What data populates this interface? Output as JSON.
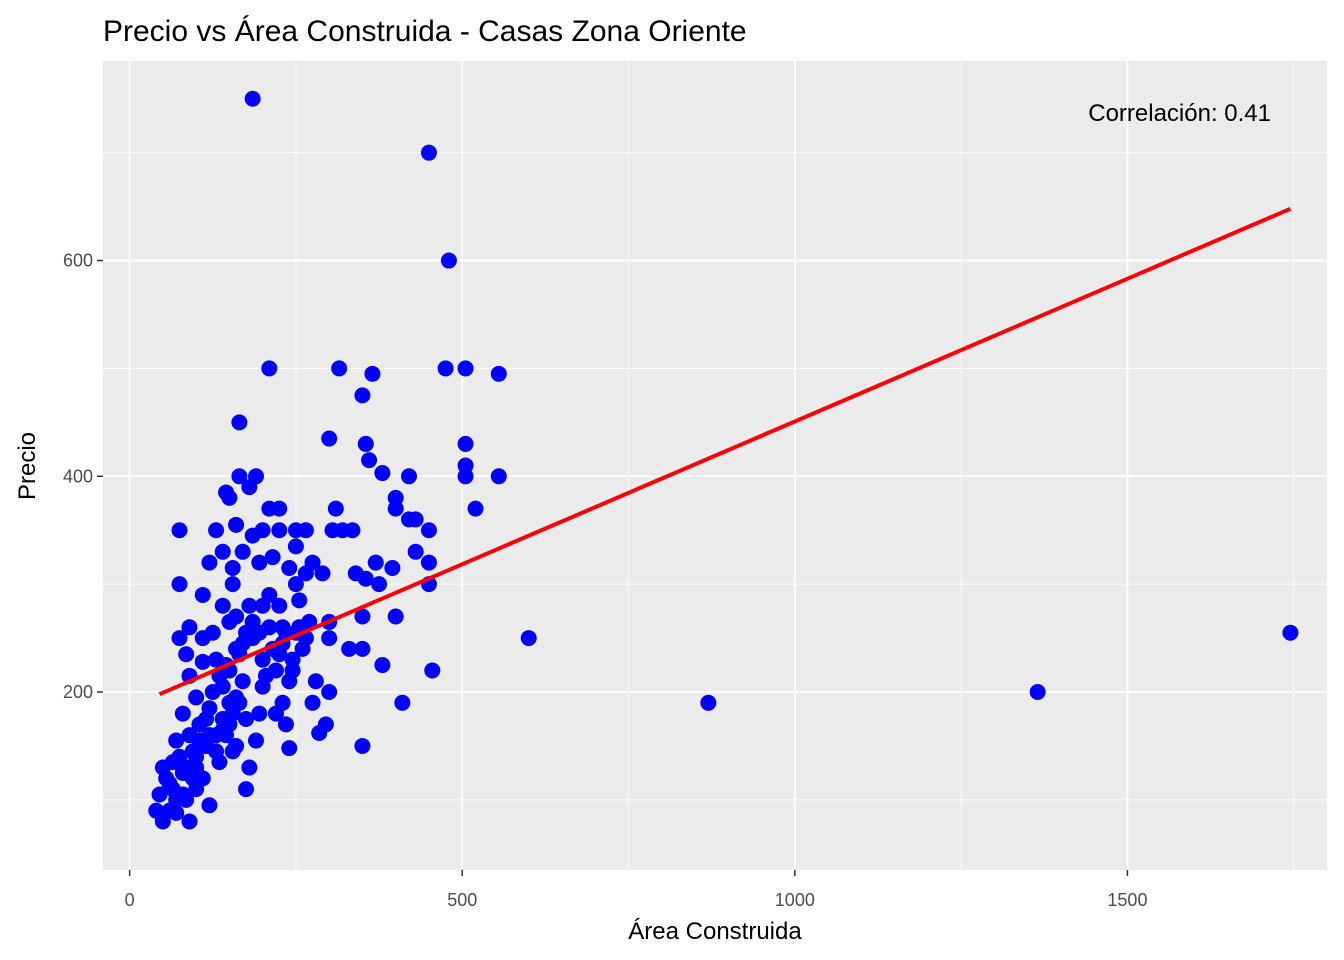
{
  "chart_data": {
    "type": "scatter",
    "title": "Precio vs Área Construida - Casas Zona Oriente",
    "xlabel": "Área Construida",
    "ylabel": "Precio",
    "xlim": [
      -40,
      1800
    ],
    "ylim": [
      35,
      785
    ],
    "x_ticks": [
      0,
      500,
      1000,
      1500
    ],
    "x_tick_labels": [
      "0",
      "500",
      "1000",
      "1500"
    ],
    "x_minor_ticks": [
      250,
      750,
      1250,
      1750
    ],
    "y_ticks": [
      200,
      400,
      600
    ],
    "y_tick_labels": [
      "200",
      "400",
      "600"
    ],
    "y_minor_ticks": [
      100,
      300,
      500,
      700
    ],
    "grid": true,
    "panel_background": "#ebebeb",
    "grid_color": "#ffffff",
    "point_color": "#0000ff",
    "line_color": "#ff0000",
    "annotation": "Correlación: 0.41",
    "regression": {
      "x": [
        45,
        1745
      ],
      "y": [
        198,
        648
      ]
    },
    "points": [
      [
        185,
        750
      ],
      [
        450,
        700
      ],
      [
        480,
        600
      ],
      [
        210,
        500
      ],
      [
        315,
        500
      ],
      [
        475,
        500
      ],
      [
        505,
        500
      ],
      [
        365,
        495
      ],
      [
        555,
        495
      ],
      [
        350,
        475
      ],
      [
        165,
        450
      ],
      [
        300,
        435
      ],
      [
        355,
        430
      ],
      [
        505,
        430
      ],
      [
        360,
        415
      ],
      [
        505,
        410
      ],
      [
        380,
        403
      ],
      [
        165,
        400
      ],
      [
        190,
        400
      ],
      [
        420,
        400
      ],
      [
        505,
        400
      ],
      [
        555,
        400
      ],
      [
        180,
        390
      ],
      [
        145,
        385
      ],
      [
        150,
        380
      ],
      [
        400,
        380
      ],
      [
        210,
        370
      ],
      [
        225,
        370
      ],
      [
        310,
        370
      ],
      [
        400,
        370
      ],
      [
        520,
        370
      ],
      [
        420,
        360
      ],
      [
        430,
        360
      ],
      [
        75,
        350
      ],
      [
        130,
        350
      ],
      [
        200,
        350
      ],
      [
        225,
        350
      ],
      [
        250,
        350
      ],
      [
        265,
        350
      ],
      [
        305,
        350
      ],
      [
        320,
        350
      ],
      [
        335,
        350
      ],
      [
        450,
        350
      ],
      [
        160,
        355
      ],
      [
        185,
        345
      ],
      [
        250,
        335
      ],
      [
        430,
        330
      ],
      [
        140,
        330
      ],
      [
        170,
        330
      ],
      [
        215,
        325
      ],
      [
        195,
        320
      ],
      [
        275,
        320
      ],
      [
        370,
        320
      ],
      [
        450,
        320
      ],
      [
        120,
        320
      ],
      [
        155,
        315
      ],
      [
        240,
        315
      ],
      [
        395,
        315
      ],
      [
        265,
        310
      ],
      [
        290,
        310
      ],
      [
        340,
        310
      ],
      [
        355,
        305
      ],
      [
        375,
        300
      ],
      [
        75,
        300
      ],
      [
        155,
        300
      ],
      [
        250,
        300
      ],
      [
        450,
        300
      ],
      [
        110,
        290
      ],
      [
        210,
        290
      ],
      [
        255,
        285
      ],
      [
        140,
        280
      ],
      [
        180,
        280
      ],
      [
        200,
        280
      ],
      [
        225,
        280
      ],
      [
        160,
        270
      ],
      [
        350,
        270
      ],
      [
        400,
        270
      ],
      [
        150,
        265
      ],
      [
        185,
        265
      ],
      [
        270,
        265
      ],
      [
        300,
        265
      ],
      [
        210,
        260
      ],
      [
        230,
        260
      ],
      [
        90,
        260
      ],
      [
        125,
        255
      ],
      [
        175,
        255
      ],
      [
        250,
        255
      ],
      [
        265,
        250
      ],
      [
        75,
        250
      ],
      [
        110,
        250
      ],
      [
        600,
        250
      ],
      [
        300,
        250
      ],
      [
        230,
        245
      ],
      [
        160,
        240
      ],
      [
        330,
        240
      ],
      [
        350,
        240
      ],
      [
        85,
        235
      ],
      [
        130,
        230
      ],
      [
        200,
        230
      ],
      [
        245,
        230
      ],
      [
        110,
        228
      ],
      [
        380,
        225
      ],
      [
        150,
        220
      ],
      [
        220,
        220
      ],
      [
        455,
        220
      ],
      [
        90,
        215
      ],
      [
        170,
        210
      ],
      [
        240,
        210
      ],
      [
        280,
        210
      ],
      [
        140,
        205
      ],
      [
        200,
        205
      ],
      [
        300,
        200
      ],
      [
        100,
        195
      ],
      [
        160,
        195
      ],
      [
        230,
        190
      ],
      [
        275,
        190
      ],
      [
        410,
        190
      ],
      [
        870,
        190
      ],
      [
        1365,
        200
      ],
      [
        1745,
        255
      ],
      [
        120,
        185
      ],
      [
        80,
        180
      ],
      [
        195,
        180
      ],
      [
        220,
        180
      ],
      [
        175,
        175
      ],
      [
        105,
        170
      ],
      [
        235,
        170
      ],
      [
        295,
        170
      ],
      [
        140,
        165
      ],
      [
        90,
        160
      ],
      [
        130,
        160
      ],
      [
        70,
        155
      ],
      [
        115,
        150
      ],
      [
        190,
        155
      ],
      [
        240,
        148
      ],
      [
        285,
        162
      ],
      [
        350,
        150
      ],
      [
        155,
        145
      ],
      [
        100,
        140
      ],
      [
        65,
        135
      ],
      [
        135,
        135
      ],
      [
        180,
        130
      ],
      [
        50,
        130
      ],
      [
        80,
        125
      ],
      [
        110,
        120
      ],
      [
        60,
        115
      ],
      [
        100,
        110
      ],
      [
        175,
        110
      ],
      [
        70,
        100
      ],
      [
        45,
        105
      ],
      [
        85,
        100
      ],
      [
        120,
        95
      ],
      [
        40,
        90
      ],
      [
        60,
        90
      ],
      [
        90,
        80
      ],
      [
        50,
        80
      ],
      [
        70,
        88
      ],
      [
        75,
        140
      ],
      [
        95,
        145
      ],
      [
        120,
        160
      ],
      [
        140,
        175
      ],
      [
        150,
        190
      ],
      [
        125,
        200
      ],
      [
        135,
        215
      ],
      [
        145,
        225
      ],
      [
        165,
        235
      ],
      [
        170,
        245
      ],
      [
        185,
        250
      ],
      [
        195,
        255
      ],
      [
        215,
        240
      ],
      [
        225,
        235
      ],
      [
        235,
        255
      ],
      [
        255,
        260
      ],
      [
        260,
        240
      ],
      [
        245,
        220
      ],
      [
        205,
        215
      ],
      [
        155,
        180
      ],
      [
        145,
        160
      ],
      [
        115,
        175
      ],
      [
        105,
        155
      ],
      [
        160,
        150
      ],
      [
        130,
        145
      ],
      [
        85,
        130
      ],
      [
        95,
        120
      ],
      [
        55,
        120
      ],
      [
        65,
        110
      ],
      [
        80,
        105
      ],
      [
        100,
        130
      ],
      [
        150,
        170
      ],
      [
        165,
        190
      ]
    ]
  }
}
